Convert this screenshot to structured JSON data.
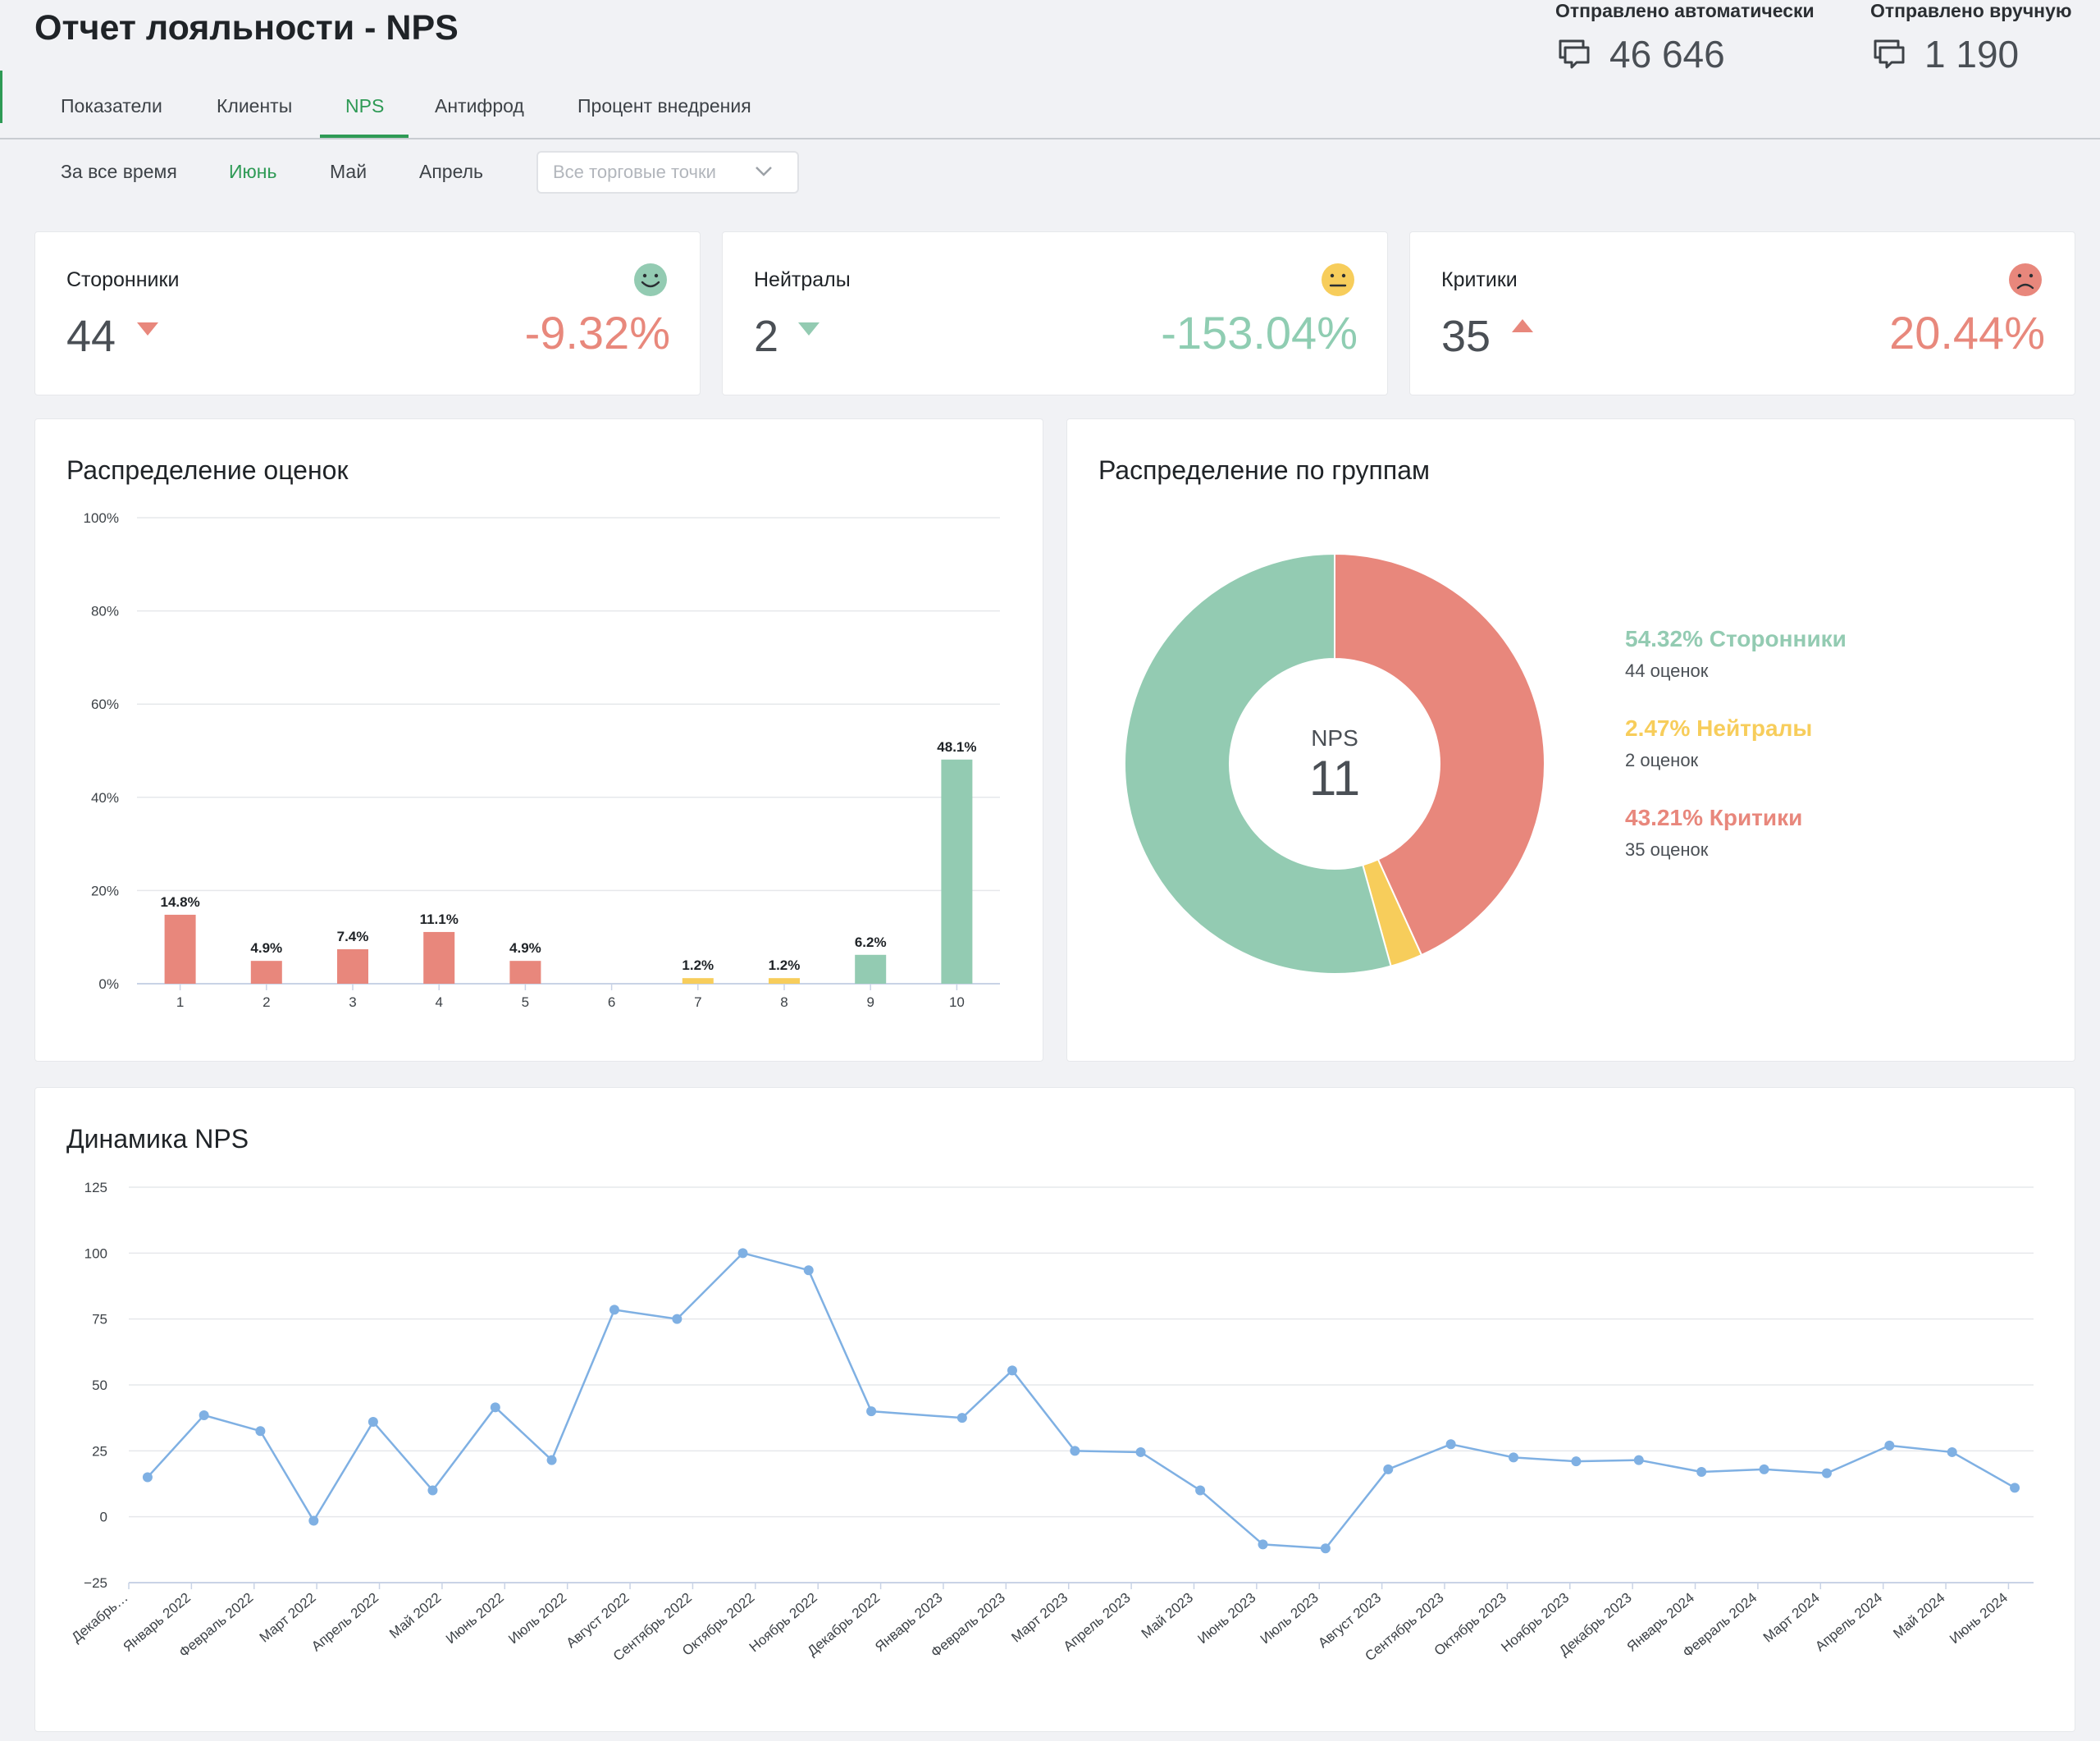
{
  "header": {
    "title": "Отчет лояльности - NPS",
    "sent_auto_label": "Отправлено автоматически",
    "sent_auto_value": "46 646",
    "sent_manual_label": "Отправлено вручную",
    "sent_manual_value": "1 190"
  },
  "tabs": [
    {
      "label": "Показатели",
      "active": false
    },
    {
      "label": "Клиенты",
      "active": false
    },
    {
      "label": "NPS",
      "active": true
    },
    {
      "label": "Антифрод",
      "active": false
    },
    {
      "label": "Процент внедрения",
      "active": false
    }
  ],
  "periods": [
    {
      "label": "За все время",
      "active": false
    },
    {
      "label": "Июнь",
      "active": true
    },
    {
      "label": "Май",
      "active": false
    },
    {
      "label": "Апрель",
      "active": false
    }
  ],
  "store_select": {
    "placeholder": "Все торговые точки"
  },
  "stats": {
    "promoters": {
      "title": "Сторонники",
      "count": "44",
      "trend": "down",
      "change": "-9.32%",
      "change_color": "#e8887c"
    },
    "passives": {
      "title": "Нейтралы",
      "count": "2",
      "trend": "down",
      "change": "-153.04%",
      "change_color": "#8fcdb2"
    },
    "detractors": {
      "title": "Критики",
      "count": "35",
      "trend": "up",
      "change": "20.44%",
      "change_color": "#e8887c"
    }
  },
  "colors": {
    "accent": "#2e9a55",
    "promoter": "#93cbb2",
    "passive": "#f7cd5b",
    "detractor": "#e8877c",
    "line": "#7fb0e3"
  },
  "icons": {
    "sent": "chat-bubbles-icon",
    "promoter": "happy-face-icon",
    "passive": "neutral-face-icon",
    "detractor": "sad-face-icon",
    "select": "chevron-down-icon"
  },
  "chart_data": [
    {
      "type": "bar",
      "title": "Распределение оценок",
      "categories": [
        "1",
        "2",
        "3",
        "4",
        "5",
        "6",
        "7",
        "8",
        "9",
        "10"
      ],
      "values": [
        14.8,
        4.9,
        7.4,
        11.1,
        4.9,
        0,
        1.2,
        1.2,
        6.2,
        48.1
      ],
      "data_labels": [
        "14.8%",
        "4.9%",
        "7.4%",
        "11.1%",
        "4.9%",
        "",
        "1.2%",
        "1.2%",
        "6.2%",
        "48.1%"
      ],
      "groups": [
        "detractor",
        "detractor",
        "detractor",
        "detractor",
        "detractor",
        "detractor",
        "passive",
        "passive",
        "promoter",
        "promoter"
      ],
      "ylim": [
        0,
        100
      ],
      "yticks": [
        "0%",
        "20%",
        "40%",
        "60%",
        "80%",
        "100%"
      ],
      "grid": true
    },
    {
      "type": "pie",
      "title": "Распределение по группам",
      "center_label": "NPS",
      "center_value": "11",
      "slices": [
        {
          "name": "Критики",
          "value": 43.21,
          "color": "#e8877c"
        },
        {
          "name": "Нейтралы",
          "value": 2.47,
          "color": "#f7cd5b"
        },
        {
          "name": "Сторонники",
          "value": 54.32,
          "color": "#93cbb2"
        }
      ],
      "legend": [
        {
          "pct": "54.32% Сторонники",
          "sub": "44 оценок",
          "color": "#93cbb2"
        },
        {
          "pct": "2.47% Нейтралы",
          "sub": "2 оценок",
          "color": "#f7cd5b"
        },
        {
          "pct": "43.21% Критики",
          "sub": "35 оценок",
          "color": "#e8877c"
        }
      ]
    },
    {
      "type": "line",
      "title": "Динамика NPS",
      "x": [
        "Декабрь…",
        "Январь 2022",
        "Февраль 2022",
        "Март 2022",
        "Апрель 2022",
        "Май 2022",
        "Июнь 2022",
        "Июль 2022",
        "Август 2022",
        "Сентябрь 2022",
        "Октябрь 2022",
        "Ноябрь 2022",
        "Декабрь 2022",
        "Январь 2023",
        "Февраль 2023",
        "Март 2023",
        "Апрель 2023",
        "Май 2023",
        "Июнь 2023",
        "Июль 2023",
        "Август 2023",
        "Сентябрь 2023",
        "Октябрь 2023",
        "Ноябрь 2023",
        "Декабрь 2023",
        "Январь 2024",
        "Февраль 2024",
        "Март 2024",
        "Апрель 2024",
        "Май 2024",
        "Июнь 2024"
      ],
      "points": [
        {
          "x": 0.3,
          "y": 15
        },
        {
          "x": 1.2,
          "y": 38.5
        },
        {
          "x": 2.1,
          "y": 32.5
        },
        {
          "x": 2.95,
          "y": -1.5
        },
        {
          "x": 3.9,
          "y": 36
        },
        {
          "x": 4.85,
          "y": 10
        },
        {
          "x": 5.85,
          "y": 41.5
        },
        {
          "x": 6.75,
          "y": 21.5
        },
        {
          "x": 7.75,
          "y": 78.5
        },
        {
          "x": 8.75,
          "y": 75
        },
        {
          "x": 9.8,
          "y": 100
        },
        {
          "x": 10.85,
          "y": 93.5
        },
        {
          "x": 11.85,
          "y": 40
        },
        {
          "x": 13.3,
          "y": 37.5
        },
        {
          "x": 14.1,
          "y": 55.5
        },
        {
          "x": 15.1,
          "y": 25
        },
        {
          "x": 16.15,
          "y": 24.5
        },
        {
          "x": 17.1,
          "y": 10
        },
        {
          "x": 18.1,
          "y": -10.5
        },
        {
          "x": 19.1,
          "y": -12
        },
        {
          "x": 20.1,
          "y": 18
        },
        {
          "x": 21.1,
          "y": 27.5
        },
        {
          "x": 22.1,
          "y": 22.5
        },
        {
          "x": 23.1,
          "y": 21
        },
        {
          "x": 24.1,
          "y": 21.5
        },
        {
          "x": 25.1,
          "y": 17
        },
        {
          "x": 26.1,
          "y": 18
        },
        {
          "x": 27.1,
          "y": 16.5
        },
        {
          "x": 28.1,
          "y": 27
        },
        {
          "x": 29.1,
          "y": 24.5
        },
        {
          "x": 30.1,
          "y": 11
        }
      ],
      "ylim": [
        -25,
        125
      ],
      "yticks": [
        "-25",
        "0",
        "25",
        "50",
        "75",
        "100",
        "125"
      ],
      "grid": true
    }
  ]
}
